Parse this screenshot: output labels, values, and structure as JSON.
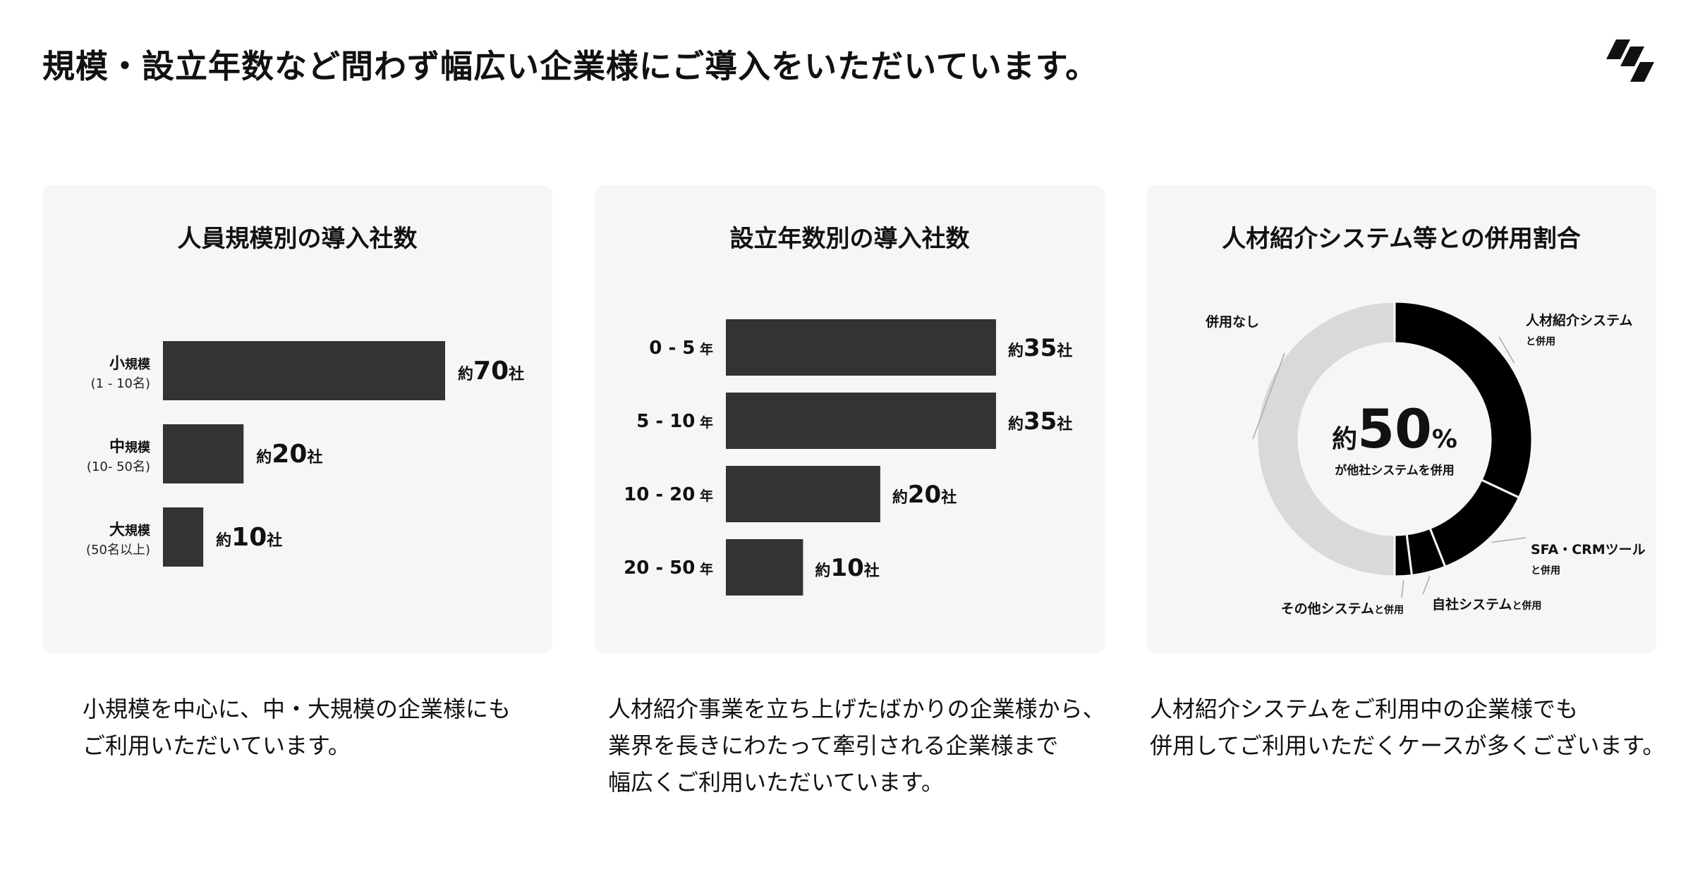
{
  "page": {
    "title": "規模・設立年数など問わず幅広い企業様にご導入をいただいています。"
  },
  "colors": {
    "bar": "#333333",
    "card_bg": "#f6f6f6",
    "donut_main": "#000000",
    "donut_rest": "#d9d9d9"
  },
  "chart_data": [
    {
      "type": "bar",
      "orientation": "horizontal",
      "title": "人員規模別の導入社数",
      "categories": [
        {
          "label": "小規模",
          "sub": "(1 - 10名)"
        },
        {
          "label": "中規模",
          "sub": "(10- 50名)"
        },
        {
          "label": "大規模",
          "sub": "(50名以上)"
        }
      ],
      "values": [
        70,
        20,
        10
      ],
      "value_prefix": "約",
      "value_suffix": "社",
      "xlim": [
        0,
        70
      ]
    },
    {
      "type": "bar",
      "orientation": "horizontal",
      "title": "設立年数別の導入社数",
      "categories": [
        {
          "label": "0 - 5",
          "unit": "年"
        },
        {
          "label": "5 - 10",
          "unit": "年"
        },
        {
          "label": "10 - 20",
          "unit": "年"
        },
        {
          "label": "20 - 50",
          "unit": "年"
        }
      ],
      "values": [
        35,
        35,
        20,
        10
      ],
      "value_prefix": "約",
      "value_suffix": "社",
      "xlim": [
        0,
        35
      ]
    },
    {
      "type": "pie",
      "title": "人材紹介システム等との併用割合",
      "center": {
        "prefix": "約",
        "value": "50",
        "unit": "%",
        "caption": "が他社システムを併用"
      },
      "slices": [
        {
          "label": "人材紹介システム",
          "label_suffix": "と併用",
          "value": 32
        },
        {
          "label": "SFA・CRMツール",
          "label_suffix": "と併用",
          "value": 12
        },
        {
          "label": "自社システム",
          "label_suffix": "と併用",
          "value": 4
        },
        {
          "label": "その他システム",
          "label_suffix": "と併用",
          "value": 2
        },
        {
          "label": "併用なし",
          "label_suffix": "",
          "value": 50
        }
      ]
    }
  ],
  "descriptions": [
    [
      "小規模を中心に、中・大規模の企業様にも",
      "ご利用いただいています。"
    ],
    [
      "人材紹介事業を立ち上げたばかりの企業様から、",
      "業界を長きにわたって牽引される企業様まで",
      "幅広くご利用いただいています。"
    ],
    [
      "人材紹介システムをご利用中の企業様でも",
      "併用してご利用いただくケースが多くございます。"
    ]
  ]
}
